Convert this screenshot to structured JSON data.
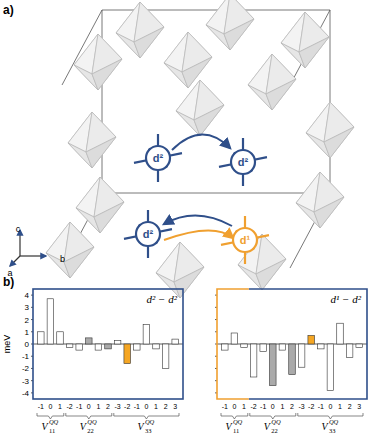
{
  "panels": [
    "a)",
    "b)"
  ],
  "diagram": {
    "atoms": [
      "d²",
      "d²",
      "d²",
      "d¹"
    ],
    "axes": [
      "a",
      "b",
      "c"
    ]
  },
  "chart_data": [
    {
      "type": "bar",
      "title": "d² − d²",
      "ylabel": "meV",
      "categories": [
        "-1",
        "0",
        "1",
        "-2",
        "-1",
        "0",
        "1",
        "2",
        "-3",
        "-2",
        "-1",
        "0",
        "1",
        "2",
        "3"
      ],
      "values": [
        1.0,
        3.7,
        1.0,
        -0.3,
        -0.5,
        0.5,
        -0.5,
        -0.4,
        0.3,
        -1.6,
        -0.5,
        1.6,
        -0.4,
        -2.0,
        0.4
      ],
      "colors": [
        "#ffffff",
        "#ffffff",
        "#ffffff",
        "#ffffff",
        "#ffffff",
        "#aaaaaa",
        "#ffffff",
        "#aaaaaa",
        "#ffffff",
        "#f5a623",
        "#ffffff",
        "#ffffff",
        "#ffffff",
        "#ffffff",
        "#ffffff"
      ],
      "groups": [
        {
          "text": "V",
          "sub": "11",
          "sup": "QQ",
          "count": 3
        },
        {
          "text": "V",
          "sub": "22",
          "sup": "QQ",
          "count": 5
        },
        {
          "text": "V",
          "sub": "33",
          "sup": "QQ",
          "count": 7
        }
      ],
      "ylim": [
        -4.5,
        4.5
      ],
      "yticks": [
        -4,
        -3,
        -2,
        -1,
        0,
        1,
        2,
        3,
        4
      ]
    },
    {
      "type": "bar",
      "title": "d¹ − d²",
      "categories": [
        "-1",
        "0",
        "1",
        "-2",
        "-1",
        "0",
        "1",
        "2",
        "-3",
        "-2",
        "-1",
        "0",
        "1",
        "2",
        "3"
      ],
      "values": [
        -0.5,
        0.9,
        -0.3,
        -2.7,
        -0.6,
        -3.4,
        -0.5,
        -2.5,
        -1.9,
        0.7,
        -0.4,
        -3.8,
        1.7,
        -1.1,
        -0.3
      ],
      "colors": [
        "#ffffff",
        "#ffffff",
        "#ffffff",
        "#ffffff",
        "#ffffff",
        "#aaaaaa",
        "#ffffff",
        "#aaaaaa",
        "#ffffff",
        "#f5a623",
        "#ffffff",
        "#ffffff",
        "#ffffff",
        "#ffffff",
        "#ffffff"
      ],
      "groups": [
        {
          "text": "V",
          "sub": "11",
          "sup": "QQ",
          "count": 3
        },
        {
          "text": "V",
          "sub": "22",
          "sup": "QQ",
          "count": 5
        },
        {
          "text": "V",
          "sub": "33",
          "sup": "QQ",
          "count": 7
        }
      ],
      "ylim": [
        -4.5,
        4.5
      ],
      "yticks": [
        -4,
        -3,
        -2,
        -1,
        0,
        1,
        2,
        3,
        4
      ],
      "tick_labels": "x"
    }
  ]
}
